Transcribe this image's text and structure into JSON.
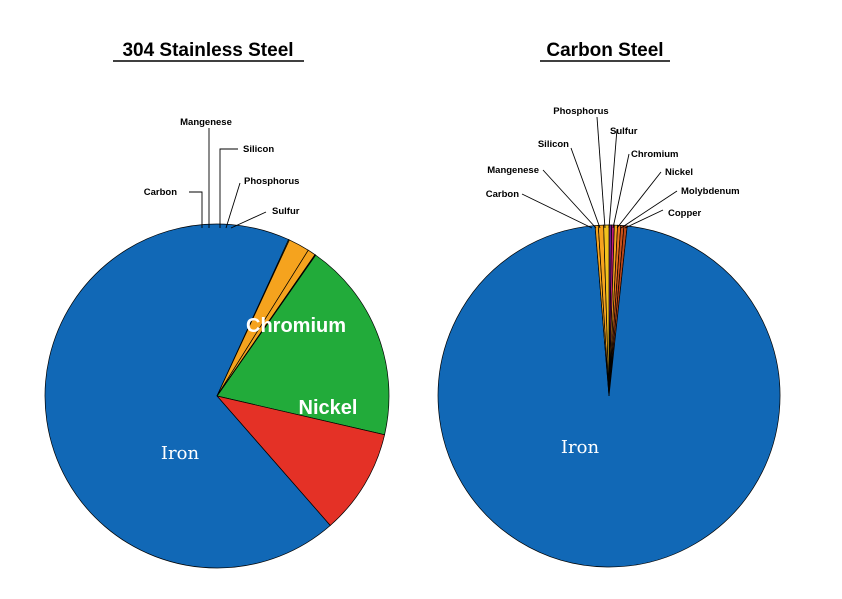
{
  "chart_data": [
    {
      "type": "pie",
      "title": "304 Stainless Steel",
      "slices": [
        {
          "label": "Chromium",
          "value": 19.0,
          "color": "#22ab3a",
          "label_style": "inside-bold"
        },
        {
          "label": "Nickel",
          "value": 10.0,
          "color": "#e43126",
          "label_style": "inside-bold"
        },
        {
          "label": "Iron",
          "value": 68.65,
          "color": "#1168b6",
          "label_style": "inside-serif"
        },
        {
          "label": "Carbon",
          "value": 0.08,
          "color": "#f7e42c",
          "label_style": "callout"
        },
        {
          "label": "Mangenese",
          "value": 2.0,
          "color": "#f5a31e",
          "label_style": "callout"
        },
        {
          "label": "Silicon",
          "value": 0.75,
          "color": "#f5a31e",
          "label_style": "callout"
        },
        {
          "label": "Phosphorus",
          "value": 0.045,
          "color": "#f5a31e",
          "label_style": "callout"
        },
        {
          "label": "Sulfur",
          "value": 0.03,
          "color": "#f5a31e",
          "label_style": "callout"
        }
      ]
    },
    {
      "type": "pie",
      "title": "Carbon Steel",
      "slices": [
        {
          "label": "Phosphorus",
          "value": 0.25,
          "color": "#6a1f8a",
          "label_style": "callout"
        },
        {
          "label": "Sulfur",
          "value": 0.25,
          "color": "#c21a7a",
          "label_style": "callout"
        },
        {
          "label": "Chromium",
          "value": 0.3,
          "color": "#f5a31e",
          "label_style": "callout"
        },
        {
          "label": "Nickel",
          "value": 0.3,
          "color": "#e8721c",
          "label_style": "callout"
        },
        {
          "label": "Molybdenum",
          "value": 0.3,
          "color": "#c8501a",
          "label_style": "callout"
        },
        {
          "label": "Copper",
          "value": 0.3,
          "color": "#b8461a",
          "label_style": "callout"
        },
        {
          "label": "Iron",
          "value": 97.0,
          "color": "#1168b6",
          "label_style": "inside-serif"
        },
        {
          "label": "Carbon",
          "value": 0.3,
          "color": "#f5a31e",
          "label_style": "callout"
        },
        {
          "label": "Mangenese",
          "value": 0.5,
          "color": "#f5a31e",
          "label_style": "callout"
        },
        {
          "label": "Silicon",
          "value": 0.5,
          "color": "#f2c21e",
          "label_style": "callout"
        }
      ]
    }
  ]
}
